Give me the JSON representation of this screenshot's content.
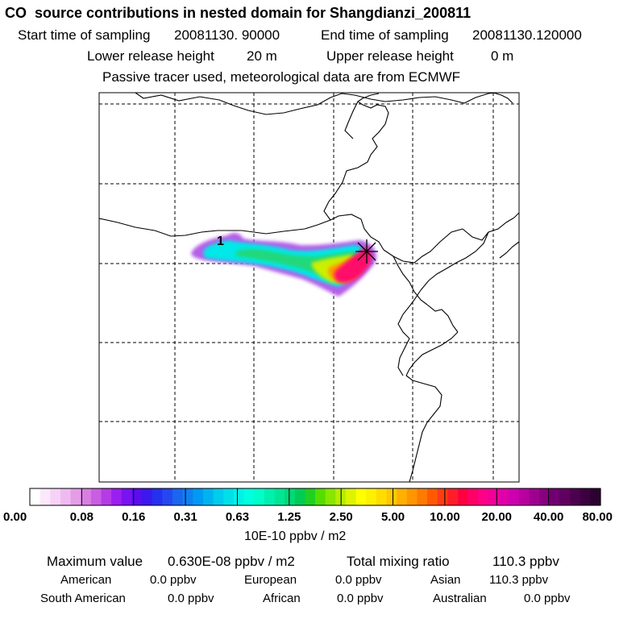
{
  "header": {
    "title": "CO  source contributions in nested domain for Shangdianzi_200811",
    "start_label": "Start time of sampling",
    "start_value": "20081130. 90000",
    "end_label": "End time of sampling",
    "end_value": "20081130.120000",
    "lower_label": "Lower release height",
    "lower_value": "20 m",
    "upper_label": "Upper release height",
    "upper_value": "0 m",
    "note": "Passive tracer used, meteorological data are from ECMWF"
  },
  "chart_data": {
    "type": "heatmap",
    "title": "CO  source contributions in nested domain for Shangdianzi_200811",
    "map_marker_label": "1",
    "receptor_marker": "×",
    "colorbar": {
      "unit": "10E-10 ppbv / m2",
      "tick_labels": [
        "0.00",
        "0.08",
        "0.16",
        "0.31",
        "0.63",
        "1.25",
        "2.50",
        "5.00",
        "10.00",
        "20.00",
        "40.00",
        "80.00"
      ],
      "colors": [
        "#ffffff",
        "#fbe9fb",
        "#f6d3f6",
        "#efbaf0",
        "#e59de8",
        "#d77fe1",
        "#c95ee2",
        "#b53be6",
        "#9b1ff0",
        "#7a12f2",
        "#5a0df0",
        "#3c17ee",
        "#2431ee",
        "#2447f2",
        "#1a66ef",
        "#0f7ff2",
        "#0099f3",
        "#00b3f0",
        "#00ccee",
        "#00e0ea",
        "#00f2e6",
        "#00ffe0",
        "#00ffc8",
        "#00f0b0",
        "#00e696",
        "#00d978",
        "#00cc55",
        "#20d020",
        "#55dd00",
        "#88e600",
        "#b4ee00",
        "#dcf400",
        "#ffff00",
        "#fff000",
        "#ffdd00",
        "#ffc800",
        "#ffb000",
        "#ff9600",
        "#ff7a00",
        "#ff5a00",
        "#ff3c14",
        "#ff1e28",
        "#ff0040",
        "#ff0066",
        "#ff0088",
        "#f00099",
        "#e000a8",
        "#cc00b0",
        "#b8009f",
        "#a00090",
        "#880080",
        "#700070",
        "#600060",
        "#4e0050",
        "#3c0040",
        "#2c0030"
      ]
    },
    "plume": {
      "description_values": {
        "maximum": 6.3e-09,
        "unit": "ppbv / m2"
      }
    },
    "grid": true
  },
  "stats": {
    "max_label": "Maximum value",
    "max_value": "0.630E-08 ppbv / m2",
    "total_label": "Total mixing ratio",
    "total_value": "110.3 ppbv",
    "regions": [
      {
        "name": "American",
        "value": "0.0 ppbv"
      },
      {
        "name": "European",
        "value": "0.0 ppbv"
      },
      {
        "name": "Asian",
        "value": "110.3 ppbv"
      },
      {
        "name": "South American",
        "value": "0.0 ppbv"
      },
      {
        "name": "African",
        "value": "0.0 ppbv"
      },
      {
        "name": "Australian",
        "value": "0.0 ppbv"
      }
    ]
  }
}
